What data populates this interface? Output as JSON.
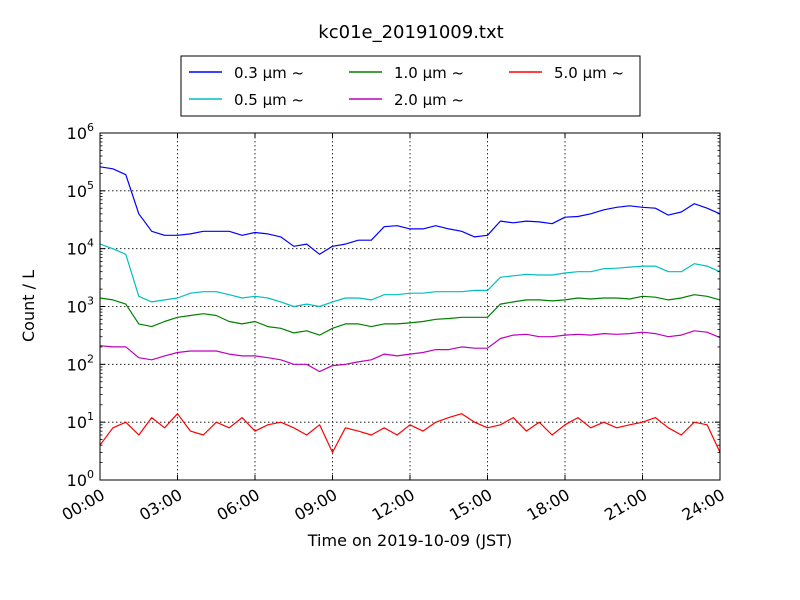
{
  "chart_data": {
    "type": "line",
    "title": "kc01e_20191009.txt",
    "xlabel": "Time on 2019-10-09 (JST)",
    "ylabel": "Count / L",
    "yscale": "log",
    "ylim": [
      1,
      1000000
    ],
    "xlim": [
      "2019-10-09 00:00",
      "2019-10-10 00:00"
    ],
    "x_tick_labels": [
      "00:00",
      "03:00",
      "06:00",
      "09:00",
      "12:00",
      "15:00",
      "18:00",
      "21:00",
      "24:00"
    ],
    "y_tick_labels": [
      {
        "base": "10",
        "exp": "0"
      },
      {
        "base": "10",
        "exp": "1"
      },
      {
        "base": "10",
        "exp": "2"
      },
      {
        "base": "10",
        "exp": "3"
      },
      {
        "base": "10",
        "exp": "4"
      },
      {
        "base": "10",
        "exp": "5"
      },
      {
        "base": "10",
        "exp": "6"
      }
    ],
    "grid": true,
    "legend_position": "top-center",
    "x": [
      "00:00",
      "00:30",
      "01:00",
      "01:30",
      "02:00",
      "02:30",
      "03:00",
      "03:30",
      "04:00",
      "04:30",
      "05:00",
      "05:30",
      "06:00",
      "06:30",
      "07:00",
      "07:30",
      "08:00",
      "08:30",
      "09:00",
      "09:30",
      "10:00",
      "10:30",
      "11:00",
      "11:30",
      "12:00",
      "12:30",
      "13:00",
      "13:30",
      "14:00",
      "14:30",
      "15:00",
      "15:30",
      "16:00",
      "16:30",
      "17:00",
      "17:30",
      "18:00",
      "18:30",
      "19:00",
      "19:30",
      "20:00",
      "20:30",
      "21:00",
      "21:30",
      "22:00",
      "22:30",
      "23:00",
      "23:30",
      "24:00"
    ],
    "series": [
      {
        "name": "0.3 μm ~",
        "color": "#0000ff",
        "values": [
          260000,
          240000,
          190000,
          40000,
          20000,
          17000,
          17000,
          18000,
          20000,
          20000,
          20000,
          17000,
          19000,
          18000,
          16000,
          11000,
          12000,
          8000,
          11000,
          12000,
          14000,
          14000,
          24000,
          25000,
          22000,
          22000,
          25000,
          22000,
          20000,
          16000,
          17000,
          30000,
          28000,
          30000,
          29000,
          27000,
          35000,
          36000,
          40000,
          47000,
          52000,
          55000,
          52000,
          50000,
          38000,
          43000,
          60000,
          50000,
          40000
        ]
      },
      {
        "name": "0.5 μm ~",
        "color": "#00bfbf",
        "values": [
          12000,
          10000,
          8000,
          1500,
          1200,
          1300,
          1400,
          1700,
          1800,
          1800,
          1600,
          1400,
          1500,
          1400,
          1200,
          1000,
          1100,
          1000,
          1200,
          1400,
          1400,
          1300,
          1600,
          1600,
          1700,
          1700,
          1800,
          1800,
          1800,
          1900,
          1900,
          3200,
          3400,
          3600,
          3500,
          3500,
          3800,
          4000,
          4000,
          4500,
          4600,
          4800,
          5000,
          5000,
          4000,
          4000,
          5500,
          5000,
          4000
        ]
      },
      {
        "name": "1.0 μm ~",
        "color": "#008000",
        "values": [
          1400,
          1300,
          1100,
          500,
          450,
          550,
          650,
          700,
          750,
          700,
          550,
          500,
          550,
          450,
          420,
          350,
          380,
          320,
          420,
          500,
          500,
          450,
          500,
          500,
          520,
          550,
          600,
          620,
          650,
          650,
          650,
          1100,
          1200,
          1300,
          1300,
          1250,
          1300,
          1400,
          1350,
          1400,
          1400,
          1350,
          1500,
          1450,
          1300,
          1400,
          1600,
          1500,
          1300
        ]
      },
      {
        "name": "2.0 μm ~",
        "color": "#bf00bf",
        "values": [
          210,
          200,
          200,
          130,
          120,
          140,
          160,
          170,
          170,
          170,
          150,
          140,
          140,
          130,
          120,
          100,
          100,
          75,
          95,
          100,
          110,
          120,
          150,
          140,
          150,
          160,
          180,
          180,
          200,
          190,
          190,
          280,
          320,
          330,
          300,
          300,
          320,
          330,
          320,
          340,
          330,
          340,
          360,
          340,
          300,
          320,
          380,
          360,
          290
        ]
      },
      {
        "name": "5.0 μm ~",
        "color": "#ff0000",
        "values": [
          4,
          8,
          10,
          6,
          12,
          8,
          14,
          7,
          6,
          10,
          8,
          12,
          7,
          9,
          10,
          8,
          6,
          9,
          3,
          8,
          7,
          6,
          8,
          6,
          9,
          7,
          10,
          12,
          14,
          10,
          8,
          9,
          12,
          7,
          10,
          6,
          9,
          12,
          8,
          10,
          8,
          9,
          10,
          12,
          8,
          6,
          10,
          9,
          3
        ]
      }
    ]
  }
}
